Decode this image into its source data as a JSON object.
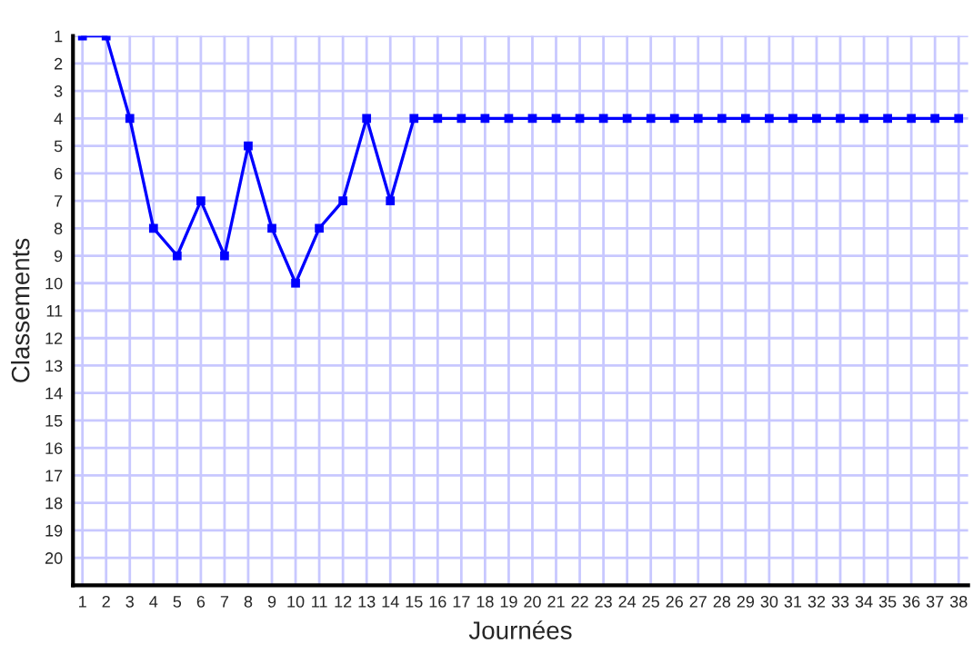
{
  "chart_data": {
    "type": "line",
    "xlabel": "Journées",
    "ylabel": "Classements",
    "x": [
      1,
      2,
      3,
      4,
      5,
      6,
      7,
      8,
      9,
      10,
      11,
      12,
      13,
      14,
      15,
      16,
      17,
      18,
      19,
      20,
      21,
      22,
      23,
      24,
      25,
      26,
      27,
      28,
      29,
      30,
      31,
      32,
      33,
      34,
      35,
      36,
      37,
      38
    ],
    "series": [
      {
        "color": "#0000ff",
        "values": [
          1,
          1,
          4,
          8,
          9,
          7,
          9,
          5,
          8,
          10,
          8,
          7,
          4,
          7,
          4,
          4,
          4,
          4,
          4,
          4,
          4,
          4,
          4,
          4,
          4,
          4,
          4,
          4,
          4,
          4,
          4,
          4,
          4,
          4,
          4,
          4,
          4,
          4
        ]
      }
    ],
    "xlim": [
      0.6,
      38.4
    ],
    "ylim": [
      21,
      1
    ],
    "xticks": [
      1,
      2,
      3,
      4,
      5,
      6,
      7,
      8,
      9,
      10,
      11,
      12,
      13,
      14,
      15,
      16,
      17,
      18,
      19,
      20,
      21,
      22,
      23,
      24,
      25,
      26,
      27,
      28,
      29,
      30,
      31,
      32,
      33,
      34,
      35,
      36,
      37,
      38
    ],
    "yticks": [
      1,
      2,
      3,
      4,
      5,
      6,
      7,
      8,
      9,
      10,
      11,
      12,
      13,
      14,
      15,
      16,
      17,
      18,
      19,
      20
    ],
    "grid": true,
    "marker": "square",
    "line_style": "solid",
    "legend": false
  }
}
